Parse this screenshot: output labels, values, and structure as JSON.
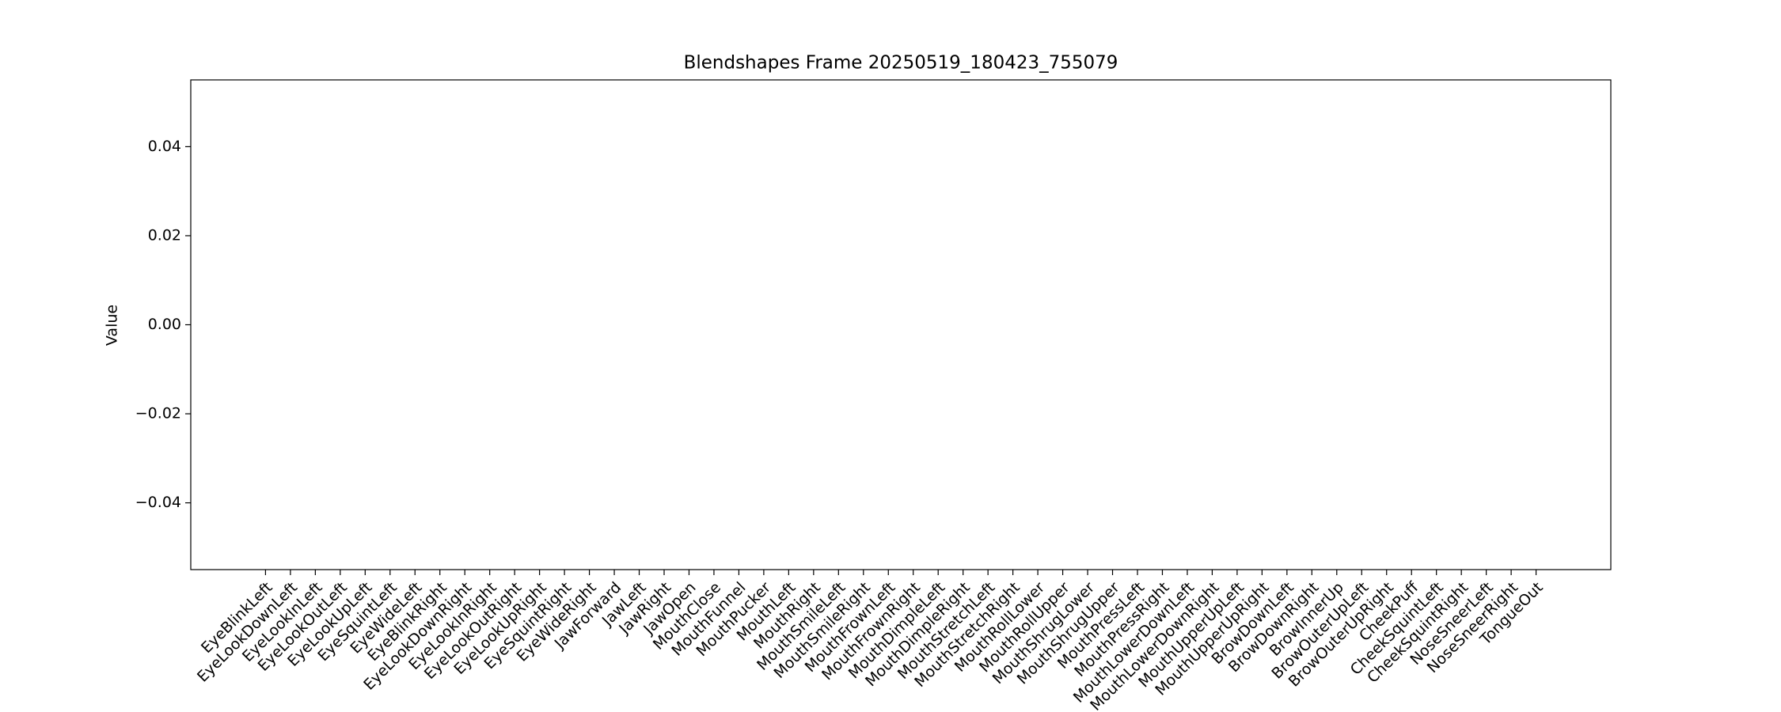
{
  "chart_data": {
    "type": "bar",
    "title": "Blendshapes Frame 20250519_180423_755079",
    "ylabel": "Value",
    "categories": [
      "EyeBlinkLeft",
      "EyeLookDownLeft",
      "EyeLookInLeft",
      "EyeLookOutLeft",
      "EyeLookUpLeft",
      "EyeSquintLeft",
      "EyeWideLeft",
      "EyeBlinkRight",
      "EyeLookDownRight",
      "EyeLookInRight",
      "EyeLookOutRight",
      "EyeLookUpRight",
      "EyeSquintRight",
      "EyeWideRight",
      "JawForward",
      "JawLeft",
      "JawRight",
      "JawOpen",
      "MouthClose",
      "MouthFunnel",
      "MouthPucker",
      "MouthLeft",
      "MouthRight",
      "MouthSmileLeft",
      "MouthSmileRight",
      "MouthFrownLeft",
      "MouthFrownRight",
      "MouthDimpleLeft",
      "MouthDimpleRight",
      "MouthStretchLeft",
      "MouthStretchRight",
      "MouthRollLower",
      "MouthRollUpper",
      "MouthShrugLower",
      "MouthShrugUpper",
      "MouthPressLeft",
      "MouthPressRight",
      "MouthLowerDownLeft",
      "MouthLowerDownRight",
      "MouthUpperUpLeft",
      "MouthUpperUpRight",
      "BrowDownLeft",
      "BrowDownRight",
      "BrowInnerUp",
      "BrowOuterUpLeft",
      "BrowOuterUpRight",
      "CheekPuff",
      "CheekSquintLeft",
      "CheekSquintRight",
      "NoseSneerLeft",
      "NoseSneerRight",
      "TongueOut"
    ],
    "values": [
      0,
      0,
      0,
      0,
      0,
      0,
      0,
      0,
      0,
      0,
      0,
      0,
      0,
      0,
      0,
      0,
      0,
      0,
      0,
      0,
      0,
      0,
      0,
      0,
      0,
      0,
      0,
      0,
      0,
      0,
      0,
      0,
      0,
      0,
      0,
      0,
      0,
      0,
      0,
      0,
      0,
      0,
      0,
      0,
      0,
      0,
      0,
      0,
      0,
      0,
      0,
      0
    ],
    "color": "#1f77b4",
    "ylim": [
      -0.055,
      0.055
    ],
    "yticks": [
      {
        "value": -0.04,
        "label": "−0.04"
      },
      {
        "value": -0.02,
        "label": "−0.02"
      },
      {
        "value": 0,
        "label": "0.00"
      },
      0.02,
      0.04
    ]
  }
}
